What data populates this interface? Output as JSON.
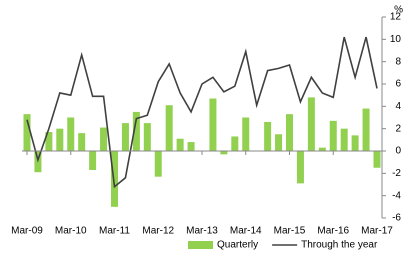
{
  "chart_data": {
    "type": "bar_line",
    "y_label": "%",
    "categories": [
      "Mar-09",
      null,
      null,
      null,
      "Mar-10",
      null,
      null,
      null,
      "Mar-11",
      null,
      null,
      null,
      "Mar-12",
      null,
      null,
      null,
      "Mar-13",
      null,
      null,
      null,
      "Mar-14",
      null,
      null,
      null,
      "Mar-15",
      null,
      null,
      null,
      "Mar-16",
      null,
      null,
      null,
      "Mar-17"
    ],
    "series": [
      {
        "name": "Quarterly",
        "type": "bar",
        "color": "#92d050",
        "values": [
          3.3,
          -1.9,
          1.7,
          2.0,
          3.0,
          1.6,
          -1.7,
          2.1,
          -5.0,
          2.5,
          3.5,
          2.5,
          -2.3,
          4.1,
          1.1,
          0.8,
          0,
          4.7,
          -0.3,
          1.3,
          3.0,
          0,
          2.6,
          1.5,
          3.3,
          -2.9,
          4.8,
          0.3,
          2.7,
          2.0,
          1.4,
          3.8,
          -1.5
        ]
      },
      {
        "name": "Through the year",
        "type": "line",
        "color": "#404040",
        "values": [
          2.8,
          -0.8,
          2.0,
          5.2,
          5.0,
          8.6,
          4.9,
          4.9,
          -3.2,
          -2.4,
          2.9,
          3.2,
          6.2,
          7.8,
          5.2,
          3.5,
          6.0,
          6.6,
          5.3,
          5.8,
          8.9,
          4.1,
          7.2,
          7.4,
          7.7,
          4.4,
          6.6,
          5.2,
          4.8,
          10.2,
          6.6,
          10.2,
          5.6
        ]
      }
    ],
    "ylim": [
      -6,
      12
    ],
    "yticks": [
      -6,
      -4,
      -2,
      0,
      2,
      4,
      6,
      8,
      10,
      12
    ]
  }
}
